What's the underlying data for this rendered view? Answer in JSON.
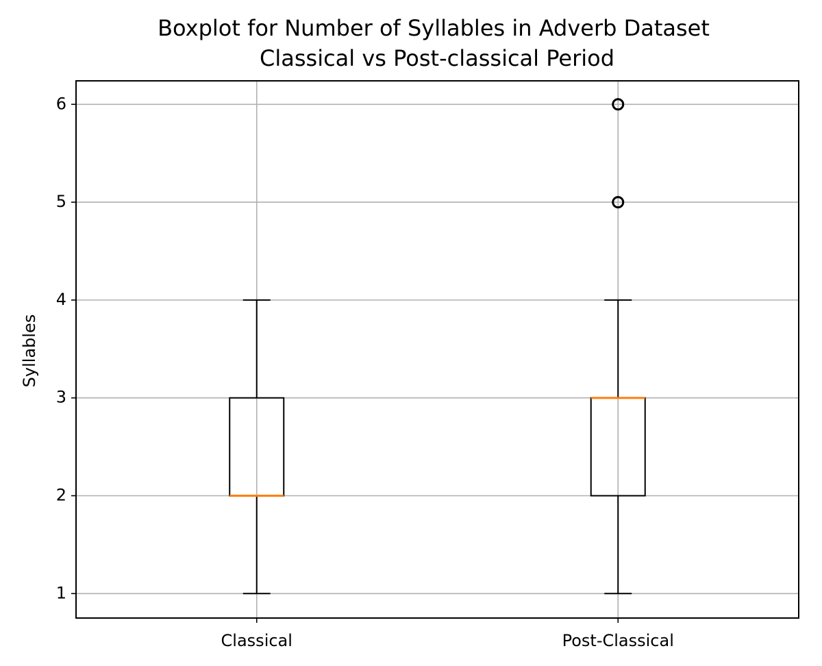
{
  "chart_data": {
    "type": "box",
    "title": [
      "Boxplot for Number of Syllables in Adverb Dataset",
      "Classical vs Post-classical Period"
    ],
    "ylabel": "Syllables",
    "categories": [
      "Classical",
      "Post-Classical"
    ],
    "boxes": [
      {
        "whislo": 1,
        "q1": 2,
        "med": 2,
        "q3": 3,
        "whishi": 4,
        "fliers": []
      },
      {
        "whislo": 1,
        "q1": 2,
        "med": 3,
        "q3": 3,
        "whishi": 4,
        "fliers": [
          5,
          6
        ]
      }
    ],
    "color": "#000000",
    "median_color": "#ff7f0e",
    "ylim": [
      0.75,
      6.24
    ],
    "yticks": [
      1,
      2,
      3,
      4,
      5,
      6
    ],
    "grid": true
  }
}
